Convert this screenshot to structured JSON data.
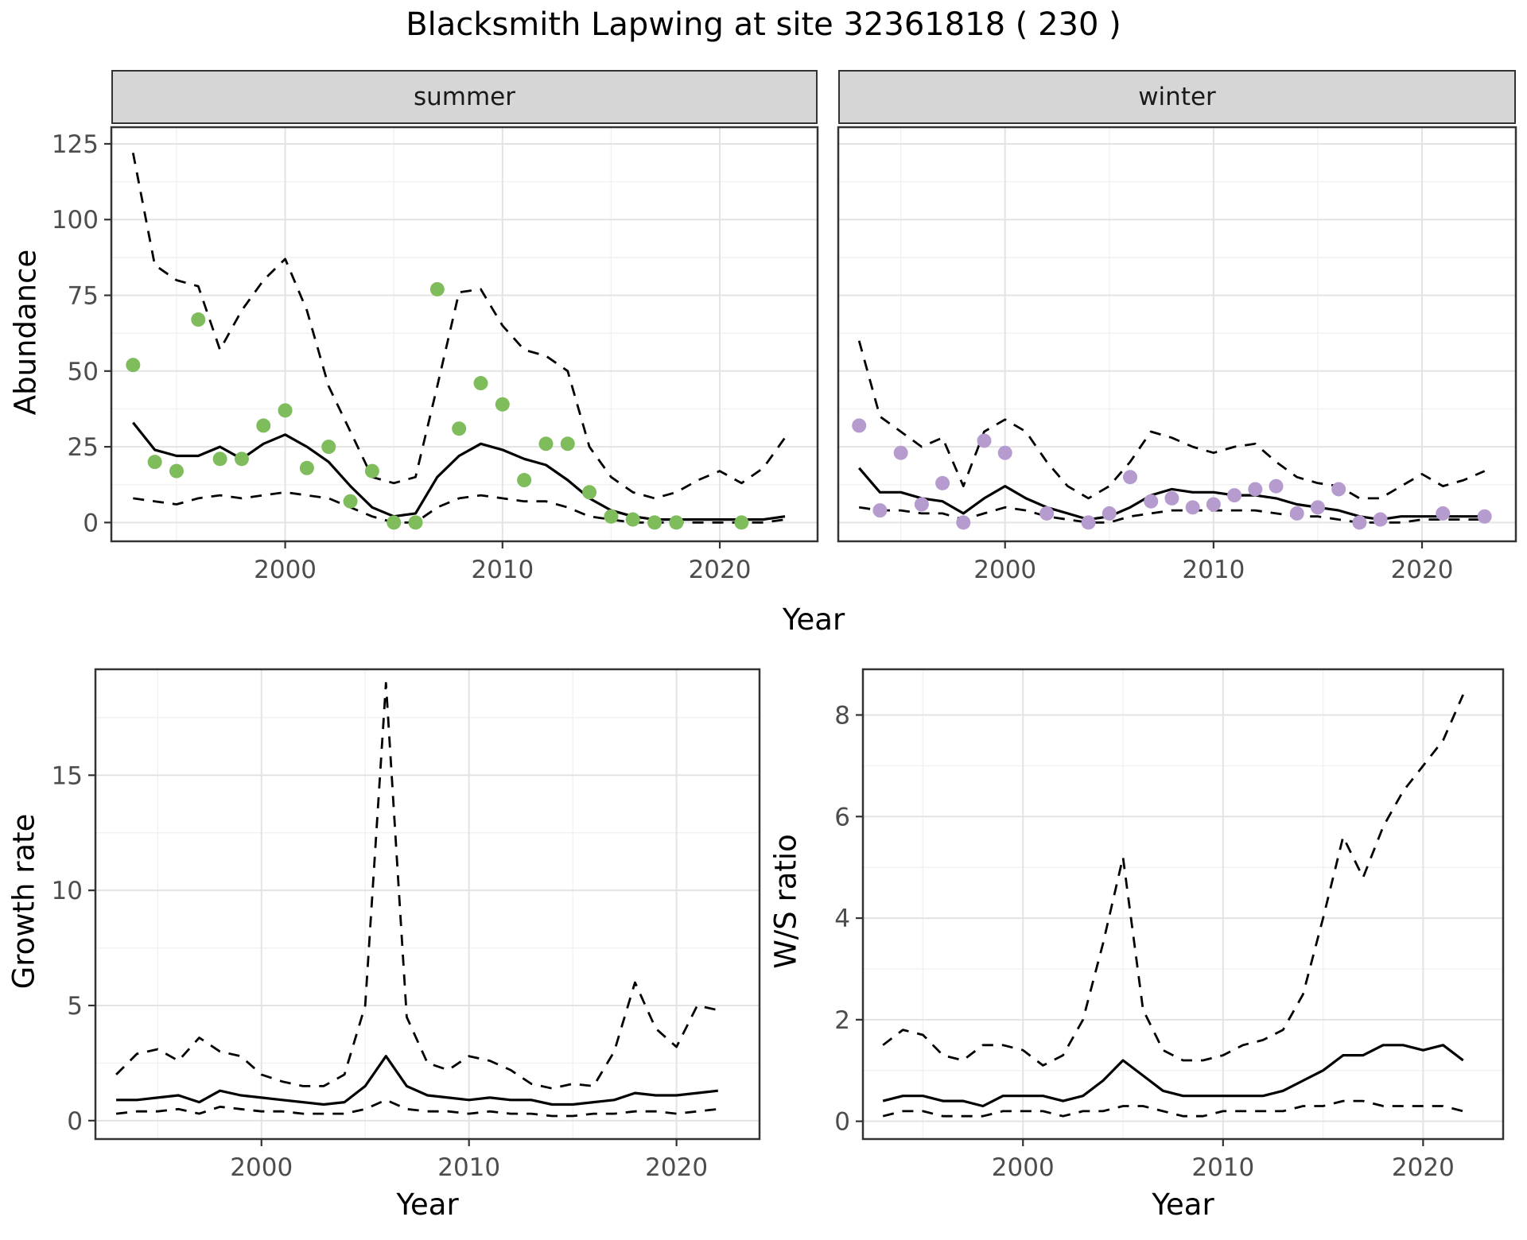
{
  "title": "Blacksmith Lapwing at site 32361818 ( 230 )",
  "labels": {
    "abundance": "Abundance",
    "year_top": "Year",
    "growth": "Growth rate",
    "year_growth": "Year",
    "ws": "W/S ratio",
    "year_ws": "Year"
  },
  "facets": {
    "summer": "summer",
    "winter": "winter"
  },
  "colors": {
    "summer_points": "#7fbc5b",
    "winter_points": "#b69bcf",
    "line": "#000000",
    "grid_major": "#e3e3e3",
    "grid_minor": "#f1f1f1",
    "panel_border": "#333333",
    "strip_bg": "#d6d6d6",
    "tick_text": "#4d4d4d"
  },
  "chart_data": [
    {
      "id": "summer",
      "type": "line",
      "facet": "summer",
      "xlabel": "Year",
      "ylabel": "Abundance",
      "xlim": [
        1992,
        2024.5
      ],
      "ylim": [
        -6.2,
        130.5
      ],
      "xticks": [
        2000,
        2010,
        2020
      ],
      "yticks": [
        0,
        25,
        50,
        75,
        100,
        125
      ],
      "x": [
        1993,
        1994,
        1995,
        1996,
        1997,
        1998,
        1999,
        2000,
        2001,
        2002,
        2003,
        2004,
        2005,
        2006,
        2007,
        2008,
        2009,
        2010,
        2011,
        2012,
        2013,
        2014,
        2015,
        2016,
        2017,
        2018,
        2019,
        2020,
        2021,
        2022,
        2023
      ],
      "series": [
        {
          "name": "median",
          "style": "solid",
          "values": [
            33,
            24,
            22,
            22,
            25,
            21,
            26,
            29,
            25,
            20,
            12,
            5,
            2,
            3,
            15,
            22,
            26,
            24,
            21,
            19,
            14,
            8,
            4,
            2,
            1,
            1,
            1,
            1,
            1,
            1,
            2
          ]
        },
        {
          "name": "upper",
          "style": "dashed",
          "values": [
            122,
            85,
            80,
            78,
            57,
            70,
            80,
            87,
            70,
            45,
            30,
            15,
            13,
            15,
            45,
            76,
            77,
            65,
            57,
            55,
            50,
            25,
            15,
            10,
            8,
            10,
            14,
            17,
            13,
            18,
            28
          ]
        },
        {
          "name": "lower",
          "style": "dashed",
          "values": [
            8,
            7,
            6,
            8,
            9,
            8,
            9,
            10,
            9,
            8,
            5,
            2,
            0,
            0,
            5,
            8,
            9,
            8,
            7,
            7,
            5,
            2,
            1,
            0,
            0,
            0,
            0,
            0,
            0,
            0,
            1
          ]
        }
      ],
      "points": {
        "color": "#7fbc5b",
        "x": [
          1993,
          1994,
          1995,
          1996,
          1997,
          1998,
          1999,
          2000,
          2001,
          2002,
          2003,
          2004,
          2005,
          2006,
          2007,
          2008,
          2009,
          2010,
          2011,
          2012,
          2013,
          2014,
          2015,
          2016,
          2017,
          2018,
          2021
        ],
        "y": [
          52,
          20,
          17,
          67,
          21,
          21,
          32,
          37,
          18,
          25,
          7,
          17,
          0,
          0,
          77,
          31,
          46,
          39,
          14,
          26,
          26,
          10,
          2,
          1,
          0,
          0,
          0
        ]
      }
    },
    {
      "id": "winter",
      "type": "line",
      "facet": "winter",
      "xlabel": "Year",
      "ylabel": "Abundance",
      "xlim": [
        1992,
        2024.5
      ],
      "ylim": [
        -6.2,
        130.5
      ],
      "xticks": [
        2000,
        2010,
        2020
      ],
      "yticks": [
        0,
        25,
        50,
        75,
        100,
        125
      ],
      "x": [
        1993,
        1994,
        1995,
        1996,
        1997,
        1998,
        1999,
        2000,
        2001,
        2002,
        2003,
        2004,
        2005,
        2006,
        2007,
        2008,
        2009,
        2010,
        2011,
        2012,
        2013,
        2014,
        2015,
        2016,
        2017,
        2018,
        2019,
        2020,
        2021,
        2022,
        2023
      ],
      "series": [
        {
          "name": "median",
          "style": "solid",
          "values": [
            18,
            10,
            10,
            8,
            7,
            3,
            8,
            12,
            8,
            5,
            3,
            1,
            2,
            5,
            9,
            11,
            10,
            10,
            9,
            9,
            8,
            6,
            5,
            4,
            2,
            1,
            2,
            2,
            2,
            2,
            2
          ]
        },
        {
          "name": "upper",
          "style": "dashed",
          "values": [
            60,
            35,
            30,
            25,
            28,
            12,
            30,
            34,
            30,
            20,
            12,
            8,
            12,
            20,
            30,
            28,
            25,
            23,
            25,
            26,
            20,
            15,
            13,
            12,
            8,
            8,
            12,
            16,
            12,
            14,
            17
          ]
        },
        {
          "name": "lower",
          "style": "dashed",
          "values": [
            5,
            4,
            4,
            3,
            3,
            1,
            3,
            5,
            4,
            2,
            1,
            0,
            0,
            2,
            3,
            4,
            4,
            4,
            4,
            4,
            3,
            2,
            2,
            1,
            0,
            0,
            0,
            1,
            1,
            1,
            1
          ]
        }
      ],
      "points": {
        "color": "#b69bcf",
        "x": [
          1993,
          1994,
          1995,
          1996,
          1997,
          1998,
          1999,
          2000,
          2002,
          2004,
          2005,
          2006,
          2007,
          2008,
          2009,
          2010,
          2011,
          2012,
          2013,
          2014,
          2015,
          2016,
          2017,
          2018,
          2021,
          2023
        ],
        "y": [
          32,
          4,
          23,
          6,
          13,
          0,
          27,
          23,
          3,
          0,
          3,
          15,
          7,
          8,
          5,
          6,
          9,
          11,
          12,
          3,
          5,
          11,
          0,
          1,
          3,
          2
        ]
      }
    },
    {
      "id": "growth",
      "type": "line",
      "xlabel": "Year",
      "ylabel": "Growth rate",
      "xlim": [
        1992,
        2024
      ],
      "ylim": [
        -0.8,
        19.6
      ],
      "xticks": [
        2000,
        2010,
        2020
      ],
      "yticks": [
        0,
        5,
        10,
        15
      ],
      "x": [
        1993,
        1994,
        1995,
        1996,
        1997,
        1998,
        1999,
        2000,
        2001,
        2002,
        2003,
        2004,
        2005,
        2006,
        2007,
        2008,
        2009,
        2010,
        2011,
        2012,
        2013,
        2014,
        2015,
        2016,
        2017,
        2018,
        2019,
        2020,
        2021,
        2022
      ],
      "series": [
        {
          "name": "median",
          "style": "solid",
          "values": [
            0.9,
            0.9,
            1.0,
            1.1,
            0.8,
            1.3,
            1.1,
            1.0,
            0.9,
            0.8,
            0.7,
            0.8,
            1.5,
            2.8,
            1.5,
            1.1,
            1.0,
            0.9,
            1.0,
            0.9,
            0.9,
            0.7,
            0.7,
            0.8,
            0.9,
            1.2,
            1.1,
            1.1,
            1.2,
            1.3
          ]
        },
        {
          "name": "upper",
          "style": "dashed",
          "values": [
            2.0,
            2.9,
            3.1,
            2.6,
            3.6,
            3.0,
            2.8,
            2.0,
            1.7,
            1.5,
            1.5,
            2.0,
            5.0,
            19.0,
            4.5,
            2.5,
            2.2,
            2.8,
            2.6,
            2.2,
            1.6,
            1.4,
            1.6,
            1.5,
            3.0,
            6.0,
            4.0,
            3.2,
            5.0,
            4.8
          ]
        },
        {
          "name": "lower",
          "style": "dashed",
          "values": [
            0.3,
            0.4,
            0.4,
            0.5,
            0.3,
            0.6,
            0.5,
            0.4,
            0.4,
            0.3,
            0.3,
            0.3,
            0.5,
            0.9,
            0.5,
            0.4,
            0.4,
            0.3,
            0.4,
            0.3,
            0.3,
            0.2,
            0.2,
            0.3,
            0.3,
            0.4,
            0.4,
            0.3,
            0.4,
            0.5
          ]
        }
      ]
    },
    {
      "id": "ws",
      "type": "line",
      "xlabel": "Year",
      "ylabel": "W/S ratio",
      "xlim": [
        1992,
        2024
      ],
      "ylim": [
        -0.35,
        8.9
      ],
      "xticks": [
        2000,
        2010,
        2020
      ],
      "yticks": [
        0,
        2,
        4,
        6,
        8
      ],
      "x": [
        1993,
        1994,
        1995,
        1996,
        1997,
        1998,
        1999,
        2000,
        2001,
        2002,
        2003,
        2004,
        2005,
        2006,
        2007,
        2008,
        2009,
        2010,
        2011,
        2012,
        2013,
        2014,
        2015,
        2016,
        2017,
        2018,
        2019,
        2020,
        2021,
        2022
      ],
      "series": [
        {
          "name": "median",
          "style": "solid",
          "values": [
            0.4,
            0.5,
            0.5,
            0.4,
            0.4,
            0.3,
            0.5,
            0.5,
            0.5,
            0.4,
            0.5,
            0.8,
            1.2,
            0.9,
            0.6,
            0.5,
            0.5,
            0.5,
            0.5,
            0.5,
            0.6,
            0.8,
            1.0,
            1.3,
            1.3,
            1.5,
            1.5,
            1.4,
            1.5,
            1.2
          ]
        },
        {
          "name": "upper",
          "style": "dashed",
          "values": [
            1.5,
            1.8,
            1.7,
            1.3,
            1.2,
            1.5,
            1.5,
            1.4,
            1.1,
            1.3,
            2.0,
            3.5,
            5.2,
            2.2,
            1.4,
            1.2,
            1.2,
            1.3,
            1.5,
            1.6,
            1.8,
            2.5,
            4.0,
            5.6,
            4.8,
            5.8,
            6.5,
            7.0,
            7.5,
            8.4
          ]
        },
        {
          "name": "lower",
          "style": "dashed",
          "values": [
            0.1,
            0.2,
            0.2,
            0.1,
            0.1,
            0.1,
            0.2,
            0.2,
            0.2,
            0.1,
            0.2,
            0.2,
            0.3,
            0.3,
            0.2,
            0.1,
            0.1,
            0.2,
            0.2,
            0.2,
            0.2,
            0.3,
            0.3,
            0.4,
            0.4,
            0.3,
            0.3,
            0.3,
            0.3,
            0.2
          ]
        }
      ]
    }
  ]
}
